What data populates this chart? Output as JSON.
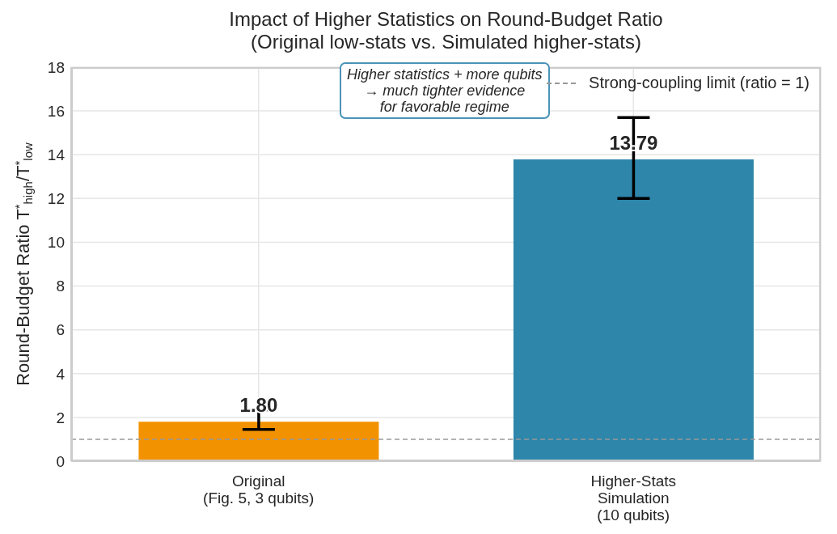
{
  "chart_data": {
    "type": "bar",
    "title": "Impact of Higher Statistics on Round-Budget Ratio\n(Original low-stats vs. Simulated higher-stats)",
    "ylabel": "Round-Budget Ratio T$^{*}$$_{high}$/T$^{*}$$_{low}$",
    "categories": [
      "Original\n(Fig. 5, 3 qubits)",
      "Higher-Stats\nSimulation\n(10 qubits)"
    ],
    "values": [
      1.8,
      13.79
    ],
    "colors": [
      "#f39200",
      "#2e86ab"
    ],
    "errors": [
      [
        1.45,
        2.35
      ],
      [
        12.0,
        15.7
      ]
    ],
    "value_labels": [
      "1.80",
      "13.79"
    ],
    "ylim": [
      0,
      18
    ],
    "yticks": [
      0,
      2,
      4,
      6,
      8,
      10,
      12,
      14,
      16,
      18
    ],
    "grid": true,
    "legend": "top right",
    "ref_lines": [
      {
        "axis": "y",
        "value": 1,
        "label": "Strong-coupling limit (ratio = 1)",
        "color": "#999999",
        "line_style": "dashed"
      }
    ],
    "annotations": [
      "Higher statistics + more qubits\n→ much tighter evidence\nfor favorable regime"
    ]
  }
}
